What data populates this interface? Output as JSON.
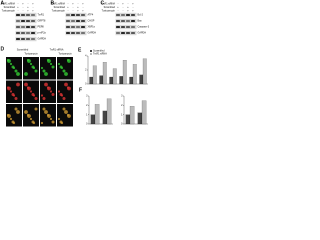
{
  "panels": [
    {
      "label": "A",
      "conditions": [
        {
          "name": "TrxR1 siRNA",
          "signs": [
            "-",
            "+",
            "-",
            "+"
          ]
        },
        {
          "name": "Scrambled",
          "signs": [
            "+",
            "-",
            "+",
            "-"
          ]
        },
        {
          "name": "Tunicamycin",
          "signs": [
            "-",
            "-",
            "+",
            "+"
          ]
        }
      ],
      "proteins": [
        "TrxR1",
        "GRP78",
        "PERK",
        "p-eIF2α",
        "GAPDH"
      ]
    },
    {
      "label": "B",
      "conditions": [
        {
          "name": "TrxR1 siRNA",
          "signs": [
            "-",
            "+",
            "-",
            "+"
          ]
        },
        {
          "name": "Scrambled",
          "signs": [
            "+",
            "-",
            "+",
            "-"
          ]
        },
        {
          "name": "Tunicamycin",
          "signs": [
            "-",
            "-",
            "+",
            "+"
          ]
        }
      ],
      "proteins": [
        "ATF4",
        "CHOP",
        "XBP1s",
        "GAPDH"
      ]
    },
    {
      "label": "C",
      "conditions": [
        {
          "name": "TrxR1 siRNA",
          "signs": [
            "-",
            "+",
            "-",
            "+"
          ]
        },
        {
          "name": "Scrambled",
          "signs": [
            "+",
            "-",
            "+",
            "-"
          ]
        },
        {
          "name": "Tunicamycin",
          "signs": [
            "-",
            "-",
            "+",
            "+"
          ]
        }
      ],
      "proteins": [
        "Bcl-2",
        "Bax",
        "Caspase-3",
        "GAPDH"
      ]
    }
  ],
  "imaging": {
    "label": "D",
    "columns": [
      "Scrambled",
      "TrxR1 siRNA"
    ],
    "subcolumns": [
      "Tunicamycin",
      "Tunicamycin"
    ]
  },
  "bar_charts": [
    {
      "label": "E",
      "categories": [
        null,
        null,
        null,
        null,
        null,
        null
      ],
      "ylim": [
        0,
        4
      ],
      "yticks": [
        0,
        2,
        4
      ],
      "series": [
        {
          "name": "Scrambled",
          "color": "#444444",
          "values": [
            1,
            1.2,
            1,
            1.1,
            1,
            1.3
          ]
        },
        {
          "name": "TrxR1 siRNA",
          "color": "#bbbbbb",
          "values": [
            2.6,
            3.1,
            2.2,
            3.4,
            2.8,
            3.6
          ]
        }
      ]
    },
    {
      "label": "F",
      "categories": [
        null,
        null
      ],
      "ylim": [
        0,
        3
      ],
      "yticks": [
        0,
        1,
        2,
        3
      ],
      "series": [
        {
          "name": "Scrambled",
          "color": "#444444",
          "values": [
            1,
            1.4
          ]
        },
        {
          "name": "TrxR1 siRNA",
          "color": "#bbbbbb",
          "values": [
            2.1,
            2.7
          ]
        }
      ]
    },
    {
      "categories": [
        null,
        null
      ],
      "ylim": [
        0,
        3
      ],
      "yticks": [
        0,
        1,
        2,
        3
      ],
      "series": [
        {
          "name": "Scrambled",
          "color": "#444444",
          "values": [
            1,
            1.2
          ]
        },
        {
          "name": "TrxR1 siRNA",
          "color": "#bbbbbb",
          "values": [
            1.9,
            2.5
          ]
        }
      ]
    }
  ]
}
